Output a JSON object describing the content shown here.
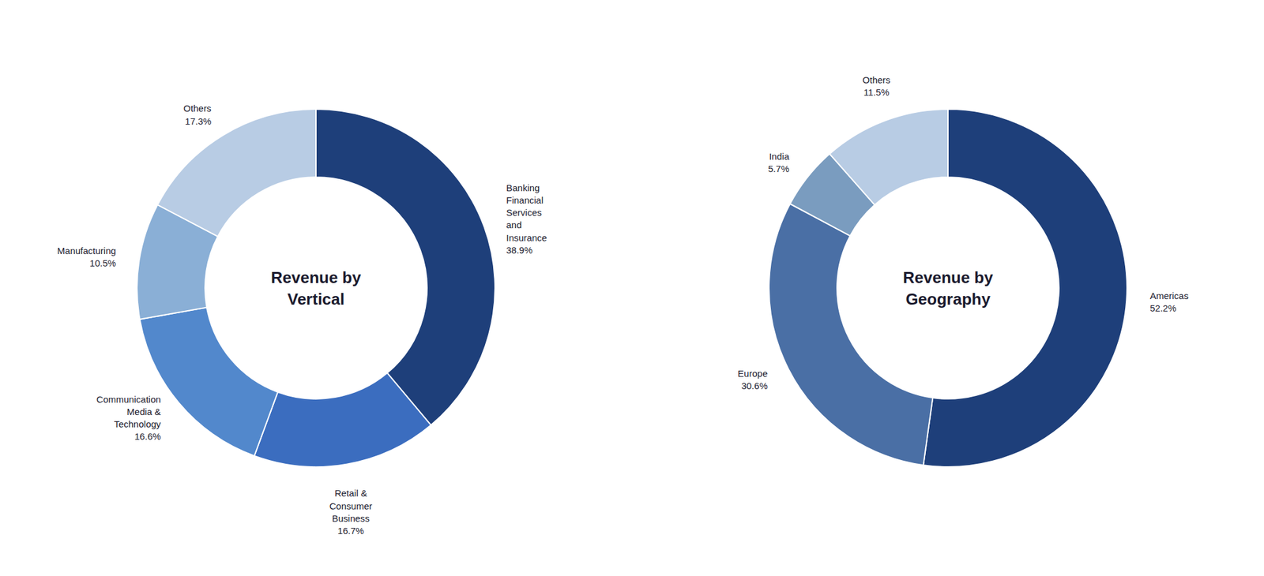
{
  "chart_data": [
    {
      "type": "donut",
      "title": "Revenue by\nVertical",
      "categories": [
        "Banking\nFinancial\nServices\nand\nInsurance",
        "Retail &\nConsumer\nBusiness",
        "Communication\nMedia &\nTechnology",
        "Manufacturing",
        "Others"
      ],
      "values": [
        38.9,
        16.7,
        16.6,
        10.5,
        17.3
      ],
      "value_labels": [
        "38.9%",
        "16.7%",
        "16.6%",
        "10.5%",
        "17.3%"
      ],
      "colors": [
        "#1e3f7a",
        "#3b6dbf",
        "#5288cc",
        "#8aafd6",
        "#b8cce4"
      ]
    },
    {
      "type": "donut",
      "title": "Revenue by\nGeography",
      "categories": [
        "Americas",
        "Europe",
        "India",
        "Others"
      ],
      "values": [
        52.2,
        30.6,
        5.7,
        11.5
      ],
      "value_labels": [
        "52.2%",
        "30.6%",
        "5.7%",
        "11.5%"
      ],
      "colors": [
        "#1e3f7a",
        "#4a6fa5",
        "#7a9cbf",
        "#b8cce4"
      ]
    }
  ]
}
